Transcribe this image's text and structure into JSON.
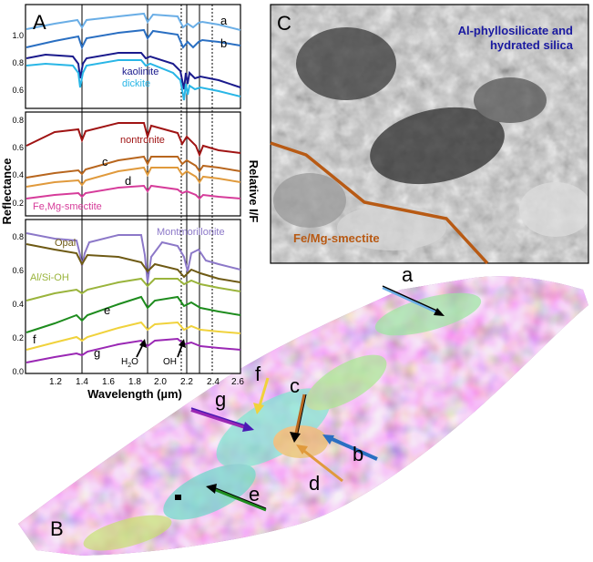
{
  "panels": {
    "a": "A",
    "b": "B",
    "c": "C"
  },
  "axes": {
    "xlabel": "Wavelength (µm)",
    "ylabel_left": "Reflectance",
    "ylabel_right": "Relative I/F",
    "x_ticks": [
      "1.2",
      "1.4",
      "1.6",
      "1.8",
      "2.0",
      "2.2",
      "2.4",
      "2.6"
    ],
    "top_y_ticks": [
      "1.0",
      "0.8",
      "0.6"
    ],
    "mid_y_ticks": [
      "0.8",
      "0.6",
      "0.4",
      "0.2"
    ],
    "bot_y_ticks": [
      "0.8",
      "0.6",
      "0.4",
      "0.2",
      "0.0"
    ]
  },
  "labels": {
    "a": "a",
    "b": "b",
    "c": "c",
    "d": "d",
    "e": "e",
    "f": "f",
    "g": "g",
    "kaolinite": "kaolinite",
    "dickite": "dickite",
    "nontronite": "nontronite",
    "fe_mg_smectite": "Fe,Mg-smectite",
    "opal": "Opal",
    "montmorillonite": "Montmorillonite",
    "al_si_oh": "Al/Si-OH",
    "h2o_main": "H",
    "h2o_sub": "2",
    "h2o_end": "O",
    "oh": "OH"
  },
  "panel_c": {
    "al_label_line1": "Al-phyllosilicate and",
    "al_label_line2": "hydrated silica",
    "femg_label": "Fe/Mg-smectite"
  },
  "colors": {
    "kaolinite": "#1a1a8c",
    "dickite": "#29b6e6",
    "a": "#6aaee6",
    "b": "#2a6fc2",
    "nontronite": "#a01414",
    "c": "#b8661e",
    "d": "#e09a3c",
    "fe_mg_smectite": "#d63c9a",
    "opal": "#6e5a14",
    "montmorillonite": "#8c78c8",
    "al_si_oh": "#9ab43c",
    "e": "#1e8c1e",
    "f": "#f0d23c",
    "g": "#9a28b4",
    "femg_boundary": "#b85a14",
    "al_text": "#1a1aa0"
  }
}
